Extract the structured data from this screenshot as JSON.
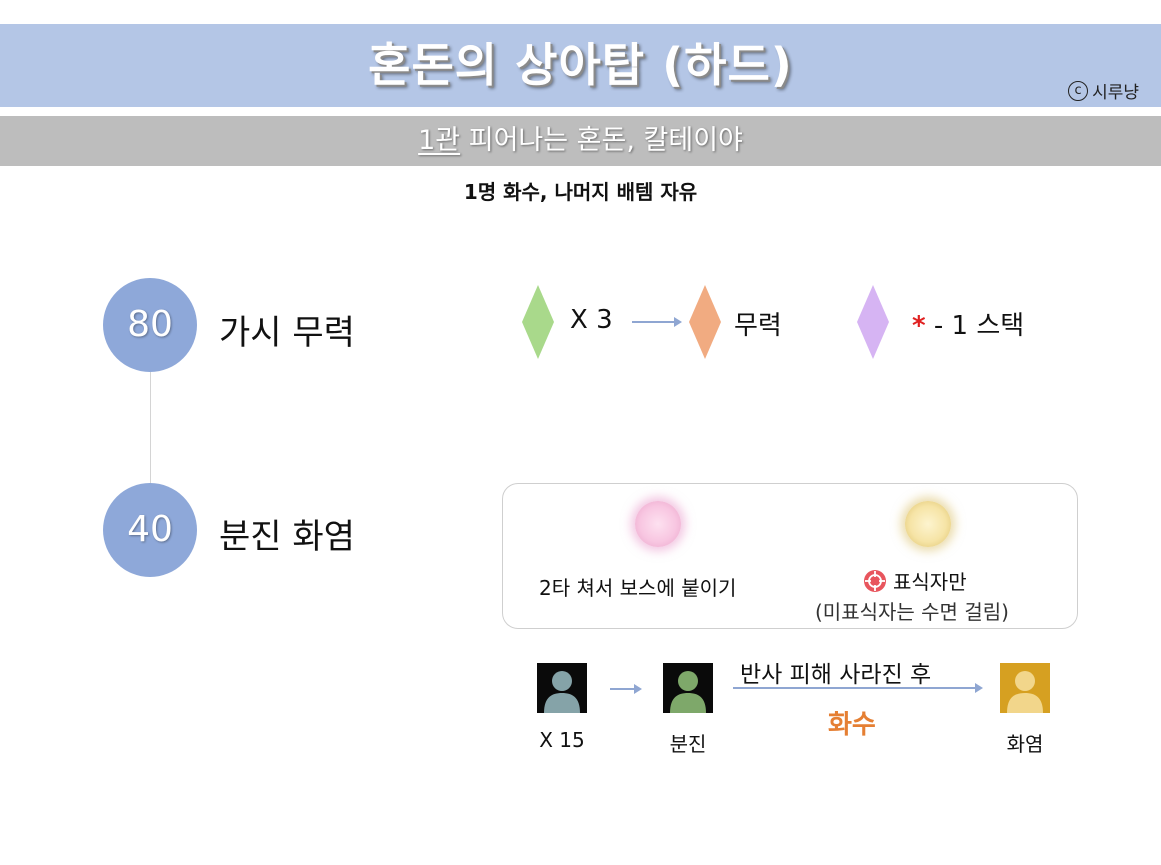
{
  "header": {
    "title": "혼돈의 상아탑 (하드)",
    "credit_mark": "c",
    "credit_name": "시루냥"
  },
  "subheader": {
    "stage": "1관",
    "boss": " 피어나는 혼돈, 칼테이야"
  },
  "note": "1명 화수, 나머지 배템 자유",
  "phases": [
    {
      "hp": "80",
      "name": "가시 무력",
      "stack_text": "X 3",
      "result_text": "무력",
      "minus_marker": "*",
      "minus_text": " - 1 스택",
      "colors": {
        "green": "#a9d98b",
        "orange": "#f1ab81",
        "purple": "#d6b4f3"
      }
    },
    {
      "hp": "40",
      "name": "분진 화염",
      "orb_pink_text": "2타 쳐서 보스에 붙이기",
      "orb_yellow_text": "표식자만",
      "orb_yellow_note": "(미표식자는 수면 걸림)",
      "flow": {
        "start_label": "X 15",
        "mid_label": "분진",
        "arrow_top": "반사 피해 사라진 후",
        "arrow_bottom": "화수",
        "end_label": "화염"
      },
      "colors": {
        "grey_person": "#85a3a8",
        "green_person": "#7ea86a",
        "gold_person": "#f2d68b",
        "dispel": "#e57f33"
      }
    }
  ],
  "icons": [
    "target-icon",
    "person-icon",
    "arrow-right-icon",
    "diamond-icon",
    "orb-icon"
  ]
}
